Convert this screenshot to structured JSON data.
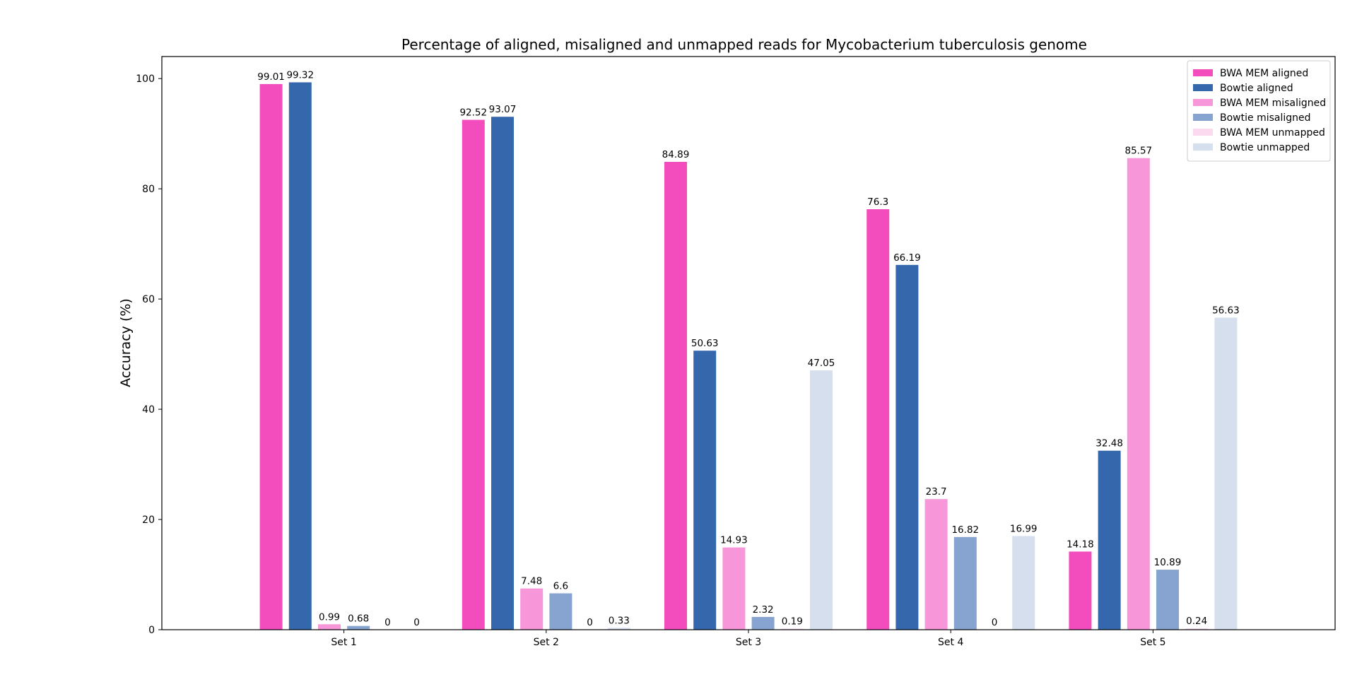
{
  "chart_data": {
    "type": "bar",
    "title": "Percentage of aligned, misaligned and unmapped reads for Mycobacterium tuberculosis genome",
    "xlabel": "",
    "ylabel": "Accuracy (%)",
    "categories": [
      "Set 1",
      "Set 2",
      "Set 3",
      "Set 4",
      "Set 5"
    ],
    "ylim": [
      0,
      104
    ],
    "yticks": [
      0,
      20,
      40,
      60,
      80,
      100
    ],
    "grid": false,
    "legend_position": "top-right",
    "series": [
      {
        "name": "BWA MEM aligned",
        "color": "#f24cbd",
        "values": [
          99.01,
          92.52,
          84.89,
          76.3,
          14.18
        ],
        "labels": [
          "99.01",
          "92.52",
          "84.89",
          "76.3",
          "14.18"
        ]
      },
      {
        "name": "Bowtie aligned",
        "color": "#3567ad",
        "values": [
          99.32,
          93.07,
          50.63,
          66.19,
          32.48
        ],
        "labels": [
          "99.32",
          "93.07",
          "50.63",
          "66.19",
          "32.48"
        ]
      },
      {
        "name": "BWA MEM misaligned",
        "color": "#f796d9",
        "values": [
          0.99,
          7.48,
          14.93,
          23.7,
          85.57
        ],
        "labels": [
          "0.99",
          "7.48",
          "14.93",
          "23.7",
          "85.57"
        ]
      },
      {
        "name": "Bowtie misaligned",
        "color": "#86a4cf",
        "values": [
          0.68,
          6.6,
          2.32,
          16.82,
          10.89
        ],
        "labels": [
          "0.68",
          "6.6",
          "2.32",
          "16.82",
          "10.89"
        ]
      },
      {
        "name": "BWA MEM unmapped",
        "color": "#fbd9ef",
        "values": [
          0,
          0,
          0.19,
          0,
          0.24
        ],
        "labels": [
          "0",
          "0",
          "0.19",
          "0",
          "0.24"
        ]
      },
      {
        "name": "Bowtie unmapped",
        "color": "#d5dfed",
        "values": [
          0,
          0.33,
          47.05,
          16.99,
          56.63
        ],
        "labels": [
          "0",
          "0.33",
          "47.05",
          "16.99",
          "56.63"
        ]
      }
    ]
  }
}
